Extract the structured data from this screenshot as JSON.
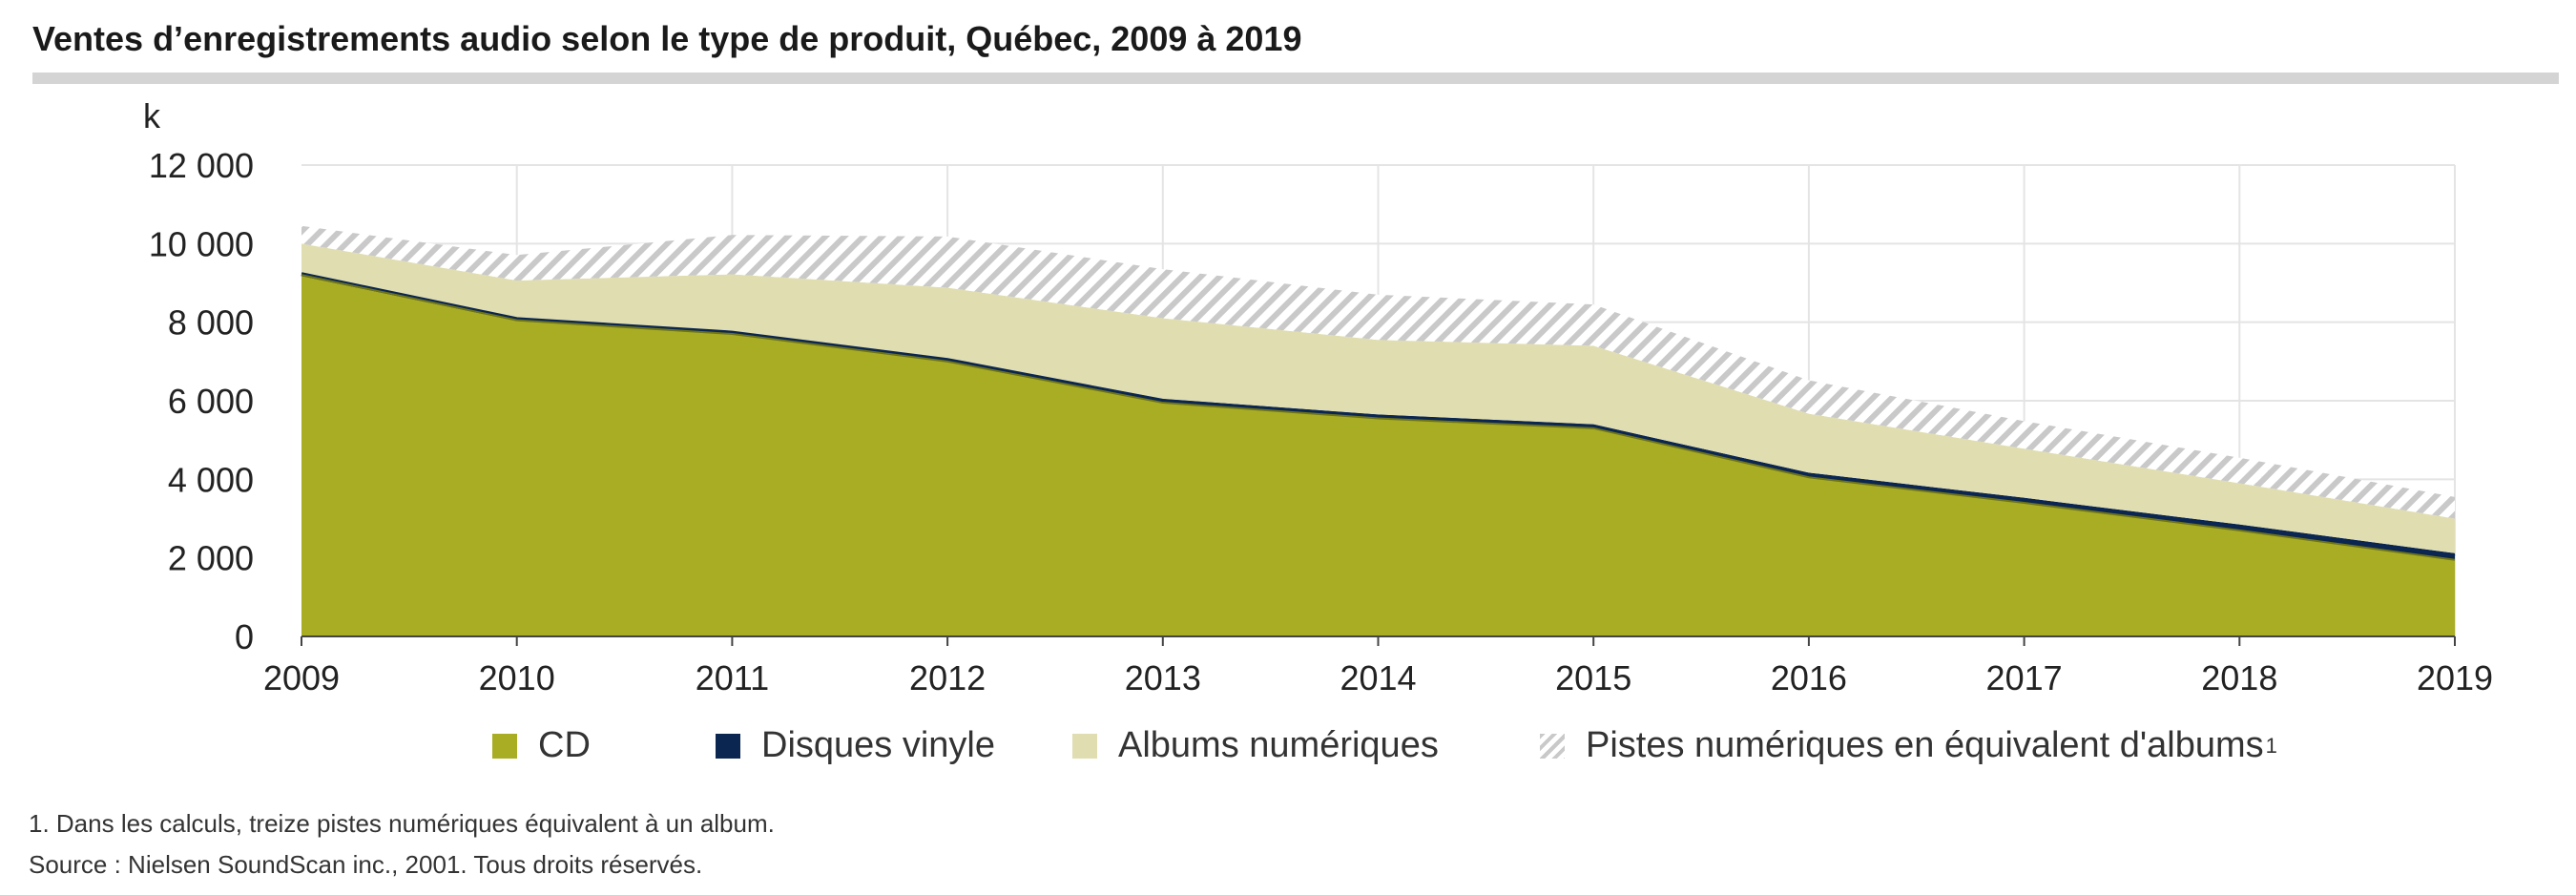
{
  "title": "Ventes d’enregistrements audio selon le type de produit, Québec, 2009 à 2019",
  "colors": {
    "cd": "#a8ad23",
    "vinyl": "#0b2650",
    "digital_albums": "#e0ddb0",
    "tracks_hatch": "#c9c9c9",
    "grid": "#e4e4e4"
  },
  "chart_data": {
    "type": "area",
    "stacked": true,
    "x": [
      2009,
      2010,
      2011,
      2012,
      2013,
      2014,
      2015,
      2016,
      2017,
      2018,
      2019
    ],
    "ylabel": "k",
    "ylim": [
      0,
      12000
    ],
    "yticks": [
      "0",
      "2 000",
      "4 000",
      "6 000",
      "8 000",
      "10 000",
      "12 000"
    ],
    "xticks": [
      "2009",
      "2010",
      "2011",
      "2012",
      "2013",
      "2014",
      "2015",
      "2016",
      "2017",
      "2018",
      "2019"
    ],
    "grid": true,
    "legend_position": "bottom",
    "series": [
      {
        "name": "CD",
        "values": [
          9200,
          8050,
          7700,
          7000,
          5950,
          5550,
          5300,
          4050,
          3400,
          2700,
          1950
        ]
      },
      {
        "name": "Disques vinyle",
        "values": [
          50,
          60,
          70,
          80,
          100,
          100,
          100,
          120,
          130,
          150,
          170
        ]
      },
      {
        "name": "Albums numériques",
        "values": [
          750,
          950,
          1450,
          1800,
          2050,
          1900,
          2000,
          1500,
          1250,
          1050,
          880
        ]
      },
      {
        "name": "Pistes numériques en équivalent d'albums",
        "values": [
          450,
          650,
          1000,
          1300,
          1250,
          1150,
          1050,
          850,
          700,
          650,
          550
        ]
      }
    ]
  },
  "legend": {
    "cd": "CD",
    "vinyl": "Disques vinyle",
    "digital_albums": "Albums numériques",
    "tracks": "Pistes numériques en équivalent d'albums",
    "tracks_footnote_mark": "1"
  },
  "notes": {
    "footnote": "1.  Dans les calculs, treize pistes numériques équivalent à un album.",
    "source": "Source :    Nielsen SoundScan inc., 2001. Tous droits réservés."
  }
}
